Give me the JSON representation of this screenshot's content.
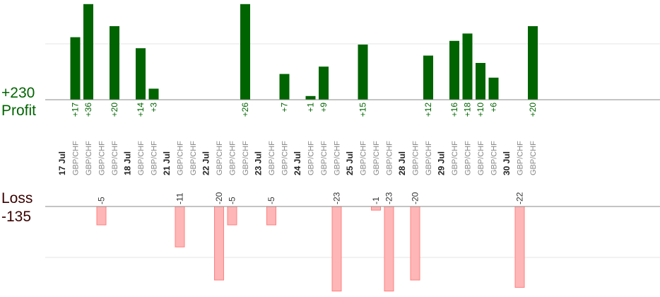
{
  "summary": {
    "profit_total": "+230",
    "profit_label": "Profit",
    "loss_label": "Loss",
    "loss_total": "-135"
  },
  "colors": {
    "profit_bar": "#006400",
    "profit_text": "#006400",
    "loss_fill": "#ffb6b6",
    "loss_stroke": "#ff8080",
    "loss_text": "#333333",
    "date_text": "#222222",
    "pair_text": "#888888",
    "axis": "#888888",
    "grid": "#e6e6e6"
  },
  "chart_data": {
    "type": "bar",
    "scale_max": 26,
    "columns": [
      {
        "label": "17 Jul",
        "is_date": true
      },
      {
        "label": "GBP/CHF",
        "profit": 17,
        "profit_label": "+17"
      },
      {
        "label": "GBP/CHF",
        "profit": 36,
        "profit_label": "+36"
      },
      {
        "label": "GBP/CHF",
        "loss": -5,
        "loss_label": "-5"
      },
      {
        "label": "GBP/CHF",
        "profit": 20,
        "profit_label": "+20"
      },
      {
        "label": "18 Jul",
        "is_date": true
      },
      {
        "label": "GBP/CHF",
        "profit": 14,
        "profit_label": "+14"
      },
      {
        "label": "GBP/CHF",
        "profit": 3,
        "profit_label": "+3"
      },
      {
        "label": "21 Jul",
        "is_date": true
      },
      {
        "label": "GBP/CHF",
        "loss": -11,
        "loss_label": "-11"
      },
      {
        "label": "GBP/CHF"
      },
      {
        "label": "22 Jul",
        "is_date": true
      },
      {
        "label": "GBP/CHF",
        "loss": -20,
        "loss_label": "-20"
      },
      {
        "label": "GBP/CHF",
        "loss": -5,
        "loss_label": "-5"
      },
      {
        "label": "GBP/CHF",
        "profit": 26,
        "profit_label": "+26"
      },
      {
        "label": "23 Jul",
        "is_date": true
      },
      {
        "label": "GBP/CHF",
        "loss": -5,
        "loss_label": "-5"
      },
      {
        "label": "GBP/CHF",
        "profit": 7,
        "profit_label": "+7"
      },
      {
        "label": "24 Jul",
        "is_date": true
      },
      {
        "label": "GBP/CHF",
        "profit": 1,
        "profit_label": "+1"
      },
      {
        "label": "GBP/CHF",
        "profit": 9,
        "profit_label": "+9"
      },
      {
        "label": "GBP/CHF",
        "loss": -23,
        "loss_label": "-23"
      },
      {
        "label": "25 Jul",
        "is_date": true
      },
      {
        "label": "GBP/CHF",
        "profit": 15,
        "profit_label": "+15"
      },
      {
        "label": "GBP/CHF",
        "loss": -1,
        "loss_label": "-1"
      },
      {
        "label": "GBP/CHF",
        "loss": -23,
        "loss_label": "-23"
      },
      {
        "label": "28 Jul",
        "is_date": true
      },
      {
        "label": "GBP/CHF",
        "loss": -20,
        "loss_label": "-20"
      },
      {
        "label": "GBP/CHF",
        "profit": 12,
        "profit_label": "+12"
      },
      {
        "label": "29 Jul",
        "is_date": true
      },
      {
        "label": "GBP/CHF",
        "profit": 16,
        "profit_label": "+16"
      },
      {
        "label": "GBP/CHF",
        "profit": 18,
        "profit_label": "+18"
      },
      {
        "label": "GBP/CHF",
        "profit": 10,
        "profit_label": "+10"
      },
      {
        "label": "GBP/CHF",
        "profit": 6,
        "profit_label": "+6"
      },
      {
        "label": "30 Jul",
        "is_date": true
      },
      {
        "label": "GBP/CHF",
        "loss": -22,
        "loss_label": "-22"
      },
      {
        "label": "GBP/CHF",
        "profit": 20,
        "profit_label": "+20"
      }
    ]
  }
}
